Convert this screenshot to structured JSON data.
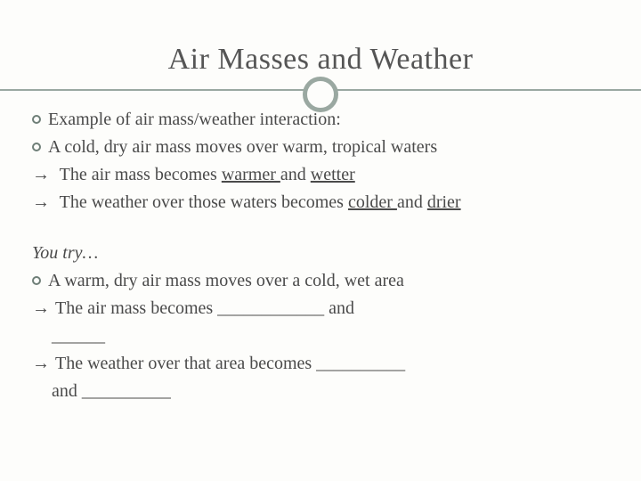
{
  "colors": {
    "background": "#fdfdfb",
    "rule": "#9aa8a1",
    "text": "#4a4a4a",
    "title": "#555555"
  },
  "typography": {
    "title_fontsize": 34,
    "body_fontsize": 20,
    "font_family": "Georgia, Times New Roman, serif",
    "line_height": 1.45
  },
  "title": "Air Masses and Weather",
  "example": {
    "intro": "Example of air mass/weather interaction:",
    "scenario": "A cold, dry air mass moves over warm, tropical waters",
    "result_airmass_pre": "The air mass becomes ",
    "result_airmass_u1": "warmer ",
    "result_airmass_mid": "and ",
    "result_airmass_u2": "wetter",
    "result_weather_pre": "The weather over those waters becomes ",
    "result_weather_u1": "colder ",
    "result_weather_mid": "and ",
    "result_weather_u2": "drier"
  },
  "youtry": {
    "heading": "You try…",
    "scenario": "A warm, dry air mass moves over a cold, wet area",
    "line1": "The air mass becomes ____________ and",
    "line1b": "______",
    "line2": "The weather over that area becomes __________",
    "line2b": "and __________"
  }
}
